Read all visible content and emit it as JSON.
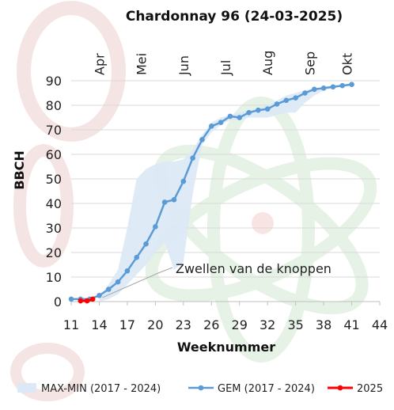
{
  "chart_data": {
    "type": "line",
    "title": "Chardonnay 96 (24-03-2025)",
    "xlabel": "Weeknummer",
    "ylabel": "BBCH",
    "xlim": [
      11,
      44
    ],
    "ylim": [
      0,
      90
    ],
    "x_ticks": [
      "11",
      "14",
      "17",
      "20",
      "23",
      "26",
      "29",
      "32",
      "35",
      "38",
      "41",
      "44"
    ],
    "y_ticks": [
      "0",
      "10",
      "20",
      "30",
      "40",
      "50",
      "60",
      "70",
      "80",
      "90"
    ],
    "months": [
      {
        "label": "Apr",
        "week": 14
      },
      {
        "label": "Mei",
        "week": 18.5
      },
      {
        "label": "Jun",
        "week": 23
      },
      {
        "label": "Jul",
        "week": 27.5
      },
      {
        "label": "Aug",
        "week": 32
      },
      {
        "label": "Sep",
        "week": 36.5
      },
      {
        "label": "Okt",
        "week": 40.5
      }
    ],
    "grid": "horizontal",
    "legend": "bottom",
    "annotation": {
      "text": "Zwellen van de knoppen",
      "week": 14,
      "bbch": 1
    },
    "band": {
      "name": "MAX-MIN (2017 - 2024)",
      "color": "#dce8f6",
      "x": [
        14,
        15,
        16,
        17,
        18,
        19,
        20,
        21,
        22,
        23,
        24,
        25,
        26,
        27,
        28,
        29,
        30,
        31,
        32,
        33,
        34,
        35,
        36,
        37,
        38,
        39,
        40,
        41
      ],
      "upper": [
        2,
        7,
        13,
        30,
        50,
        54,
        56,
        57,
        57,
        58,
        62,
        68,
        73,
        75,
        76,
        77,
        78,
        79,
        80,
        82,
        84,
        85,
        86,
        87,
        87,
        88,
        88,
        89
      ],
      "lower": [
        0,
        1,
        3,
        7,
        11,
        15,
        20,
        24,
        13,
        16,
        44,
        64,
        69,
        72,
        74,
        74,
        75,
        75,
        75,
        76,
        77,
        77,
        81,
        84,
        86,
        87,
        88,
        88
      ]
    },
    "series": [
      {
        "name": "GEM (2017 - 2024)",
        "color": "#5b9bd5",
        "x": [
          11,
          12,
          13,
          14,
          15,
          16,
          17,
          18,
          19,
          20,
          21,
          22,
          23,
          24,
          25,
          26,
          27,
          28,
          29,
          30,
          31,
          32,
          33,
          34,
          35,
          36,
          37,
          38,
          39,
          40,
          41
        ],
        "values": [
          1,
          1,
          1,
          2.5,
          5,
          8,
          12.5,
          18,
          23.5,
          30.5,
          40.5,
          41.5,
          49,
          58.5,
          66,
          71.5,
          73,
          75.5,
          75,
          77,
          78,
          78.5,
          80.5,
          82,
          83,
          85,
          86.5,
          87,
          87.5,
          88,
          88.5
        ]
      },
      {
        "name": "2025",
        "color": "#ff0000",
        "x": [
          12,
          12.7,
          13.3
        ],
        "values": [
          0.3,
          0.3,
          1
        ]
      }
    ],
    "legend_entries": [
      "MAX-MIN (2017 - 2024)",
      "GEM (2017 - 2024)",
      "2025"
    ]
  }
}
